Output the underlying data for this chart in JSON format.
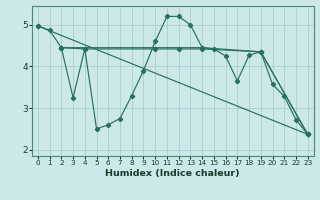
{
  "xlabel": "Humidex (Indice chaleur)",
  "bg_color": "#cce8e8",
  "line_color": "#2a7060",
  "grid_color": "#aacece",
  "xlim": [
    -0.5,
    23.5
  ],
  "ylim": [
    1.85,
    5.45
  ],
  "yticks": [
    2,
    3,
    4,
    5
  ],
  "xticks": [
    0,
    1,
    2,
    3,
    4,
    5,
    6,
    7,
    8,
    9,
    10,
    11,
    12,
    13,
    14,
    15,
    16,
    17,
    18,
    19,
    20,
    21,
    22,
    23
  ],
  "series": [
    {
      "x": [
        0,
        1,
        2,
        3,
        4,
        5,
        6,
        7,
        8,
        9,
        10,
        11,
        12,
        13,
        14,
        15,
        16,
        17,
        18,
        19,
        20,
        21,
        22,
        23
      ],
      "y": [
        4.97,
        4.87,
        4.45,
        3.25,
        4.42,
        2.5,
        2.6,
        2.75,
        3.3,
        3.9,
        4.6,
        5.2,
        5.2,
        5.0,
        4.45,
        4.42,
        4.25,
        3.65,
        4.27,
        4.35,
        3.57,
        3.28,
        2.72,
        2.37
      ]
    },
    {
      "x": [
        0,
        23
      ],
      "y": [
        4.97,
        2.37
      ]
    },
    {
      "x": [
        2,
        4,
        10,
        12,
        14,
        19,
        23
      ],
      "y": [
        4.45,
        4.42,
        4.42,
        4.42,
        4.42,
        4.35,
        2.37
      ]
    },
    {
      "x": [
        2,
        14,
        19,
        23
      ],
      "y": [
        4.45,
        4.45,
        4.35,
        2.37
      ]
    }
  ]
}
